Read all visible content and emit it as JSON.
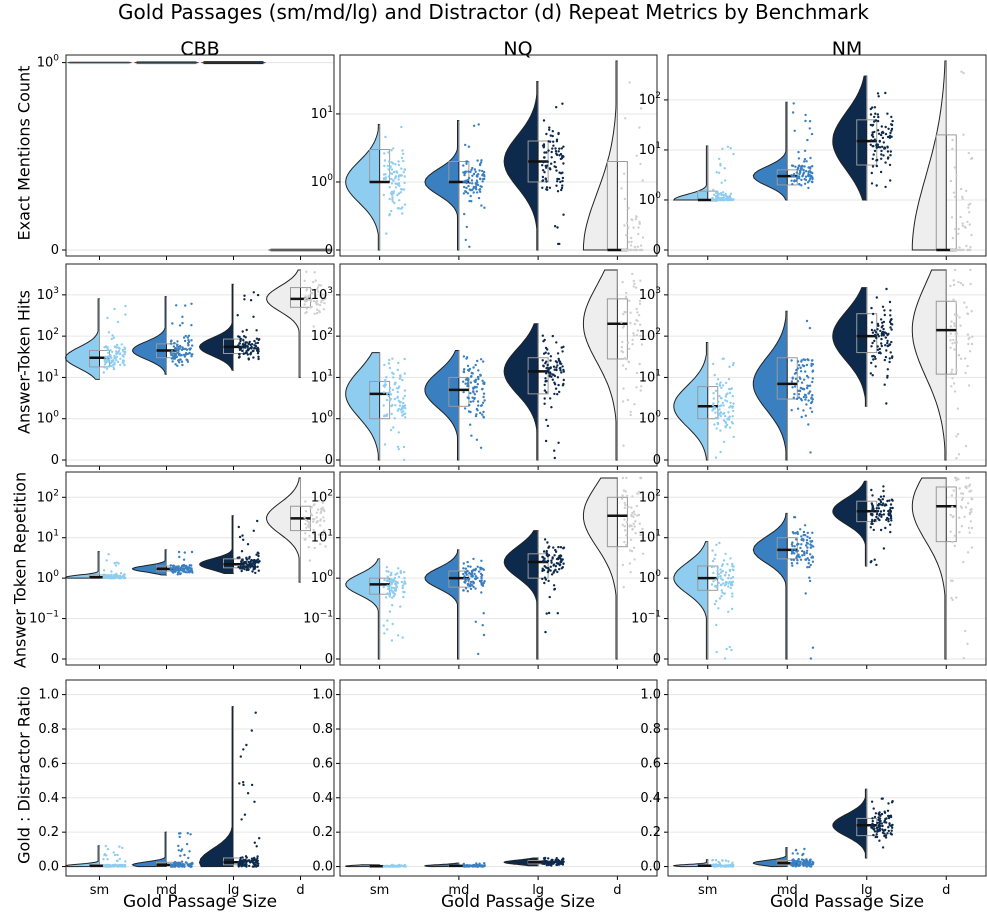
{
  "suptitle": "Gold Passages (sm/md/lg) and Distractor (d) Repeat Metrics by Benchmark",
  "columns": [
    "CBB",
    "NQ",
    "NM"
  ],
  "row_labels": [
    "Exact Mentions Count",
    "Answer-Token Hits",
    "Answer Token Repetition",
    "Gold : Distractor Ratio"
  ],
  "x_title": "Gold Passage Size",
  "colors": {
    "sm": "#8ecdf0",
    "md": "#3a7fc0",
    "lg": "#0d2a4c",
    "d": "#eeeeee",
    "outline": "#333333",
    "grid": "#e6e6e6"
  },
  "chart_data": {
    "type": "raincloud",
    "categories": [
      "sm",
      "md",
      "lg",
      "d"
    ],
    "rows": [
      {
        "name": "Exact Mentions Count",
        "scale": "symlog",
        "ticks": [
          {
            "v": 0,
            "base": "0",
            "exp": ""
          },
          {
            "v": 1,
            "base": "10",
            "exp": "0"
          },
          {
            "v": 10,
            "base": "10",
            "exp": "1"
          },
          {
            "v": 100,
            "base": "10",
            "exp": "2"
          }
        ],
        "panels": [
          {
            "benchmark": "CBB",
            "ylim": [
              0,
              1.02
            ],
            "kind": "flat",
            "groups": [
              {
                "cat": "sm",
                "value": 1
              },
              {
                "cat": "md",
                "value": 1
              },
              {
                "cat": "lg",
                "value": 1
              },
              {
                "cat": "d",
                "value": 0
              }
            ]
          },
          {
            "benchmark": "NQ",
            "ylim": [
              0,
              60
            ],
            "groups": [
              {
                "cat": "sm",
                "min": 0,
                "q1": 1,
                "median": 1,
                "q3": 3,
                "max": 7,
                "mean": 1
              },
              {
                "cat": "md",
                "min": 0,
                "q1": 1,
                "median": 1,
                "q3": 2,
                "max": 8,
                "mean": 1
              },
              {
                "cat": "lg",
                "min": 0,
                "q1": 1,
                "median": 2,
                "q3": 4,
                "max": 30,
                "mean": 2
              },
              {
                "cat": "d",
                "min": 0,
                "q1": 0,
                "median": 0,
                "q3": 2,
                "max": 60,
                "mean": 0
              }
            ]
          },
          {
            "benchmark": "NM",
            "ylim": [
              0,
              600
            ],
            "groups": [
              {
                "cat": "sm",
                "min": 1,
                "q1": 1,
                "median": 1,
                "q3": 1.5,
                "max": 12,
                "mean": 1
              },
              {
                "cat": "md",
                "min": 1,
                "q1": 2,
                "median": 3,
                "q3": 4,
                "max": 90,
                "mean": 3
              },
              {
                "cat": "lg",
                "min": 1,
                "q1": 5,
                "median": 15,
                "q3": 40,
                "max": 300,
                "mean": 15
              },
              {
                "cat": "d",
                "min": 0,
                "q1": 0,
                "median": 0,
                "q3": 20,
                "max": 600,
                "mean": 0
              }
            ]
          }
        ]
      },
      {
        "name": "Answer-Token Hits",
        "scale": "symlog",
        "ticks": [
          {
            "v": 0,
            "base": "0",
            "exp": ""
          },
          {
            "v": 1,
            "base": "10",
            "exp": "0"
          },
          {
            "v": 10,
            "base": "10",
            "exp": "1"
          },
          {
            "v": 100,
            "base": "10",
            "exp": "2"
          },
          {
            "v": 1000,
            "base": "10",
            "exp": "3"
          }
        ],
        "panels": [
          {
            "benchmark": "CBB",
            "ylim": [
              0,
              4000
            ],
            "groups": [
              {
                "cat": "sm",
                "min": 9,
                "q1": 18,
                "median": 30,
                "q3": 45,
                "max": 800,
                "mean": 30
              },
              {
                "cat": "md",
                "min": 12,
                "q1": 30,
                "median": 45,
                "q3": 65,
                "max": 900,
                "mean": 45
              },
              {
                "cat": "lg",
                "min": 15,
                "q1": 38,
                "median": 55,
                "q3": 85,
                "max": 1800,
                "mean": 55
              },
              {
                "cat": "d",
                "min": 10,
                "q1": 500,
                "median": 800,
                "q3": 1500,
                "max": 4000,
                "mean": 800
              }
            ]
          },
          {
            "benchmark": "NQ",
            "ylim": [
              0,
              4000
            ],
            "groups": [
              {
                "cat": "sm",
                "min": 0,
                "q1": 1,
                "median": 4,
                "q3": 8,
                "max": 40,
                "mean": 4
              },
              {
                "cat": "md",
                "min": 0,
                "q1": 2,
                "median": 5,
                "q3": 10,
                "max": 45,
                "mean": 5
              },
              {
                "cat": "lg",
                "min": 0,
                "q1": 4,
                "median": 14,
                "q3": 30,
                "max": 200,
                "mean": 14
              },
              {
                "cat": "d",
                "min": 0,
                "q1": 28,
                "median": 200,
                "q3": 800,
                "max": 4000,
                "mean": 200
              }
            ]
          },
          {
            "benchmark": "NM",
            "ylim": [
              0,
              4000
            ],
            "groups": [
              {
                "cat": "sm",
                "min": 0,
                "q1": 1,
                "median": 2,
                "q3": 6,
                "max": 70,
                "mean": 2
              },
              {
                "cat": "md",
                "min": 0,
                "q1": 3,
                "median": 7,
                "q3": 30,
                "max": 400,
                "mean": 7
              },
              {
                "cat": "lg",
                "min": 2,
                "q1": 40,
                "median": 100,
                "q3": 350,
                "max": 1500,
                "mean": 100
              },
              {
                "cat": "d",
                "min": 0,
                "q1": 12,
                "median": 140,
                "q3": 700,
                "max": 4000,
                "mean": 140
              }
            ]
          }
        ]
      },
      {
        "name": "Answer Token Repetition",
        "scale": "symlog",
        "linthresh": 0.1,
        "ticks": [
          {
            "v": 0,
            "base": "0",
            "exp": ""
          },
          {
            "v": 0.1,
            "base": "10",
            "exp": "−1"
          },
          {
            "v": 1,
            "base": "10",
            "exp": "0"
          },
          {
            "v": 10,
            "base": "10",
            "exp": "1"
          },
          {
            "v": 100,
            "base": "10",
            "exp": "2"
          }
        ],
        "panels": [
          {
            "benchmark": "CBB",
            "ylim": [
              0,
              300
            ],
            "groups": [
              {
                "cat": "sm",
                "min": 1,
                "q1": 1,
                "median": 1.05,
                "q3": 1.2,
                "max": 4.5,
                "mean": 1.05
              },
              {
                "cat": "md",
                "min": 1.2,
                "q1": 1.5,
                "median": 1.7,
                "q3": 2,
                "max": 5,
                "mean": 1.7
              },
              {
                "cat": "lg",
                "min": 1.3,
                "q1": 1.8,
                "median": 2.2,
                "q3": 3,
                "max": 35,
                "mean": 2.2
              },
              {
                "cat": "d",
                "min": 0.8,
                "q1": 15,
                "median": 30,
                "q3": 60,
                "max": 300,
                "mean": 30
              }
            ]
          },
          {
            "benchmark": "NQ",
            "ylim": [
              0,
              300
            ],
            "groups": [
              {
                "cat": "sm",
                "min": 0,
                "q1": 0.4,
                "median": 0.7,
                "q3": 1,
                "max": 3,
                "mean": 0.7
              },
              {
                "cat": "md",
                "min": 0,
                "q1": 0.6,
                "median": 1,
                "q3": 1.5,
                "max": 5,
                "mean": 1
              },
              {
                "cat": "lg",
                "min": 0,
                "q1": 1,
                "median": 2.5,
                "q3": 4,
                "max": 15,
                "mean": 2.5
              },
              {
                "cat": "d",
                "min": 0,
                "q1": 6,
                "median": 35,
                "q3": 100,
                "max": 300,
                "mean": 35
              }
            ]
          },
          {
            "benchmark": "NM",
            "ylim": [
              0,
              300
            ],
            "groups": [
              {
                "cat": "sm",
                "min": 0,
                "q1": 0.5,
                "median": 1,
                "q3": 2,
                "max": 8,
                "mean": 1
              },
              {
                "cat": "md",
                "min": 0,
                "q1": 3,
                "median": 5,
                "q3": 10,
                "max": 40,
                "mean": 5
              },
              {
                "cat": "lg",
                "min": 2,
                "q1": 25,
                "median": 45,
                "q3": 80,
                "max": 250,
                "mean": 45
              },
              {
                "cat": "d",
                "min": 0,
                "q1": 8,
                "median": 60,
                "q3": 180,
                "max": 300,
                "mean": 60
              }
            ]
          }
        ]
      },
      {
        "name": "Gold : Distractor Ratio",
        "scale": "linear",
        "ticks": [
          {
            "v": 0,
            "base": "0.0",
            "exp": ""
          },
          {
            "v": 0.2,
            "base": "0.2",
            "exp": ""
          },
          {
            "v": 0.4,
            "base": "0.4",
            "exp": ""
          },
          {
            "v": 0.6,
            "base": "0.6",
            "exp": ""
          },
          {
            "v": 0.8,
            "base": "0.8",
            "exp": ""
          },
          {
            "v": 1.0,
            "base": "1.0",
            "exp": ""
          }
        ],
        "panels": [
          {
            "benchmark": "CBB",
            "ylim": [
              -0.02,
              1.05
            ],
            "groups": [
              {
                "cat": "sm",
                "min": 0,
                "q1": 0.002,
                "median": 0.004,
                "q3": 0.01,
                "max": 0.12,
                "mean": 0.004
              },
              {
                "cat": "md",
                "min": 0,
                "q1": 0.005,
                "median": 0.01,
                "q3": 0.025,
                "max": 0.2,
                "mean": 0.01
              },
              {
                "cat": "lg",
                "min": 0,
                "q1": 0.01,
                "median": 0.025,
                "q3": 0.05,
                "max": 0.93,
                "mean": 0.025
              }
            ]
          },
          {
            "benchmark": "NQ",
            "ylim": [
              -0.02,
              1.05
            ],
            "groups": [
              {
                "cat": "sm",
                "min": 0,
                "q1": 0.001,
                "median": 0.002,
                "q3": 0.004,
                "max": 0.01,
                "mean": 0.002
              },
              {
                "cat": "md",
                "min": 0,
                "q1": 0.002,
                "median": 0.004,
                "q3": 0.008,
                "max": 0.02,
                "mean": 0.004
              },
              {
                "cat": "lg",
                "min": 0.005,
                "q1": 0.015,
                "median": 0.025,
                "q3": 0.035,
                "max": 0.05,
                "mean": 0.025
              }
            ]
          },
          {
            "benchmark": "NM",
            "ylim": [
              -0.02,
              1.05
            ],
            "groups": [
              {
                "cat": "sm",
                "min": 0,
                "q1": 0.003,
                "median": 0.005,
                "q3": 0.01,
                "max": 0.04,
                "mean": 0.005
              },
              {
                "cat": "md",
                "min": 0,
                "q1": 0.01,
                "median": 0.02,
                "q3": 0.035,
                "max": 0.11,
                "mean": 0.02
              },
              {
                "cat": "lg",
                "min": 0.05,
                "q1": 0.18,
                "median": 0.24,
                "q3": 0.28,
                "max": 0.45,
                "mean": 0.24
              }
            ]
          }
        ]
      }
    ]
  }
}
